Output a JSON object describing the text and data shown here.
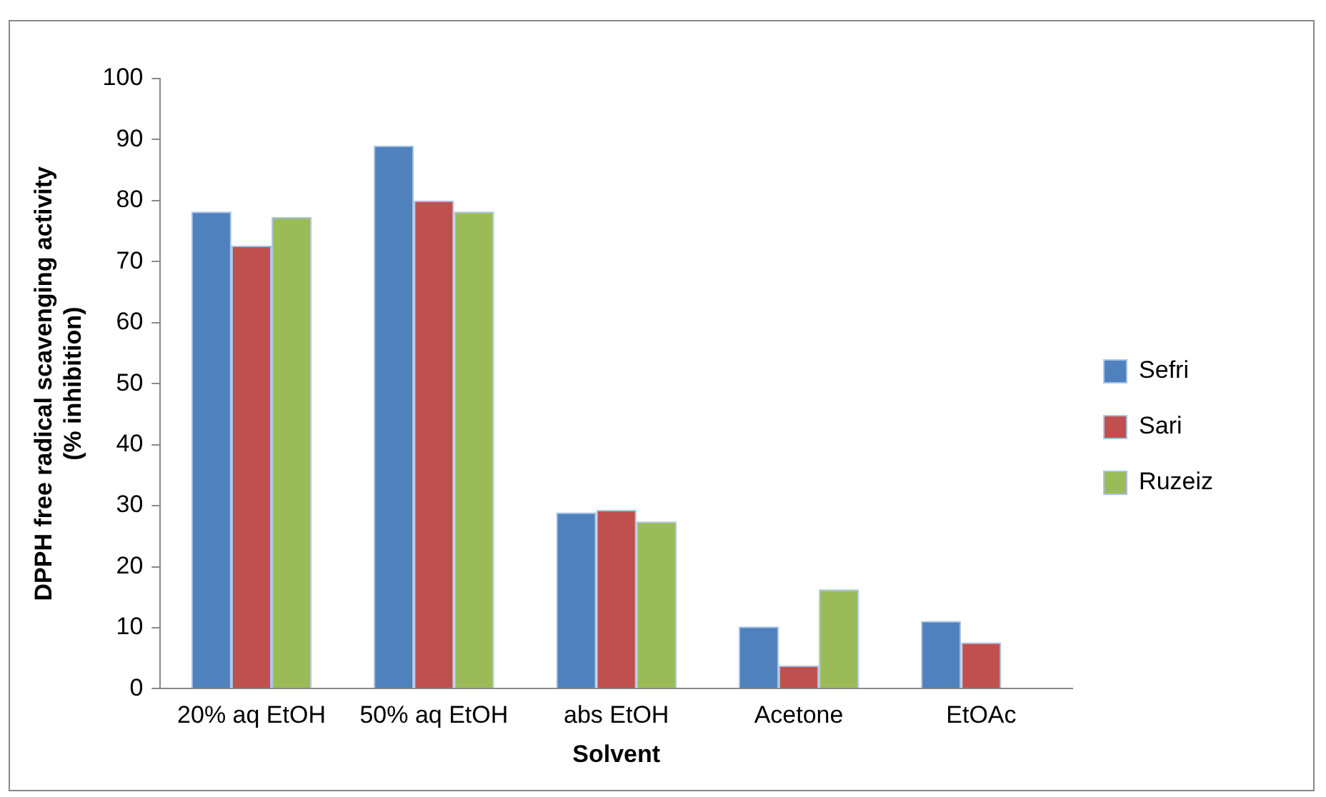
{
  "chart_data": {
    "type": "bar",
    "xlabel": "Solvent",
    "ylabel": "DPPH free radical scavenging activity\n(% inhibition)",
    "categories": [
      "20% aq EtOH",
      "50% aq EtOH",
      "abs EtOH",
      "Acetone",
      "EtOAc"
    ],
    "series": [
      {
        "name": "Sefri",
        "color": "#4f81bd",
        "values": [
          78.2,
          89,
          28.9,
          10.2,
          11.1
        ]
      },
      {
        "name": "Sari",
        "color": "#c0504d",
        "values": [
          72.6,
          80,
          29.3,
          3.8,
          7.6
        ]
      },
      {
        "name": "Ruzeiz",
        "color": "#9bbb59",
        "values": [
          77.3,
          78.2,
          27.4,
          16.3,
          null
        ]
      }
    ],
    "ylim": [
      0,
      100
    ],
    "yticks": [
      0,
      10,
      20,
      30,
      40,
      50,
      60,
      70,
      80,
      90,
      100
    ],
    "grid": false,
    "legend": "right"
  }
}
